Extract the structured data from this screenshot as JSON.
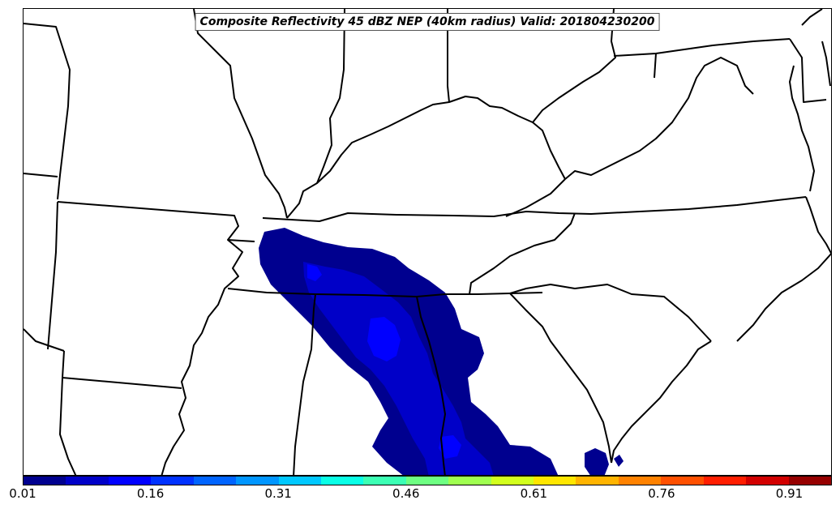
{
  "title": "Composite Reflectivity 45 dBZ NEP (40km radius) Valid: 201804230200",
  "colorbar": {
    "colors": [
      "#00008f",
      "#0000c8",
      "#0000ff",
      "#0032ff",
      "#0064ff",
      "#0096ff",
      "#00c8ff",
      "#0affe6",
      "#3cffb4",
      "#6eff82",
      "#a0ff50",
      "#d2ff1e",
      "#ffe600",
      "#ffb400",
      "#ff8200",
      "#ff5000",
      "#ff1e00",
      "#d20000",
      "#960000"
    ],
    "tick_labels": [
      "0.01",
      "0.16",
      "0.31",
      "0.46",
      "0.61",
      "0.76",
      "0.91"
    ],
    "range": [
      0.01,
      1.0
    ]
  },
  "map": {
    "region": "Southeastern United States",
    "features": [
      "state-borders",
      "coastlines",
      "probability-contours"
    ],
    "probability_levels_shown": [
      "0.01-0.06",
      "0.06-0.11",
      "0.11-0.16"
    ]
  }
}
